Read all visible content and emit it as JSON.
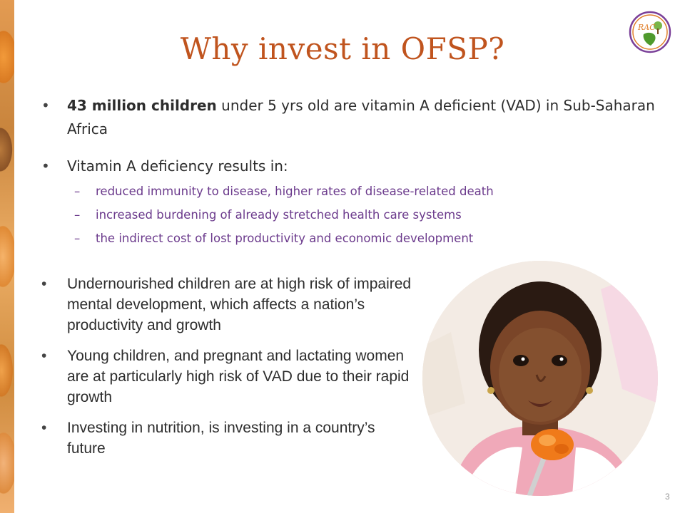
{
  "slide": {
    "title": "Why invest in OFSP?",
    "page_number": "3",
    "logo_text": "RAC",
    "bullet1": {
      "bold": "43 million children",
      "rest": " under 5 yrs old are vitamin A deficient (VAD) in Sub-Saharan Africa"
    },
    "bullet2": "Vitamin A deficiency results in:",
    "subbullets": [
      "reduced immunity to disease, higher rates of disease-related death",
      "increased burdening of already stretched health care systems",
      "the indirect cost of lost productivity and economic development"
    ],
    "lower_bullets": [
      "Undernourished children are at high risk of impaired mental development, which affects a nation’s productivity and growth",
      "Young children, and pregnant and lactating women are at particularly high risk of VAD due to their rapid growth",
      "Investing in nutrition, is investing in a country’s future"
    ],
    "colors": {
      "title": "#c0541e",
      "subbullet": "#6b3a8c",
      "body_text": "#2d2d2d"
    }
  }
}
